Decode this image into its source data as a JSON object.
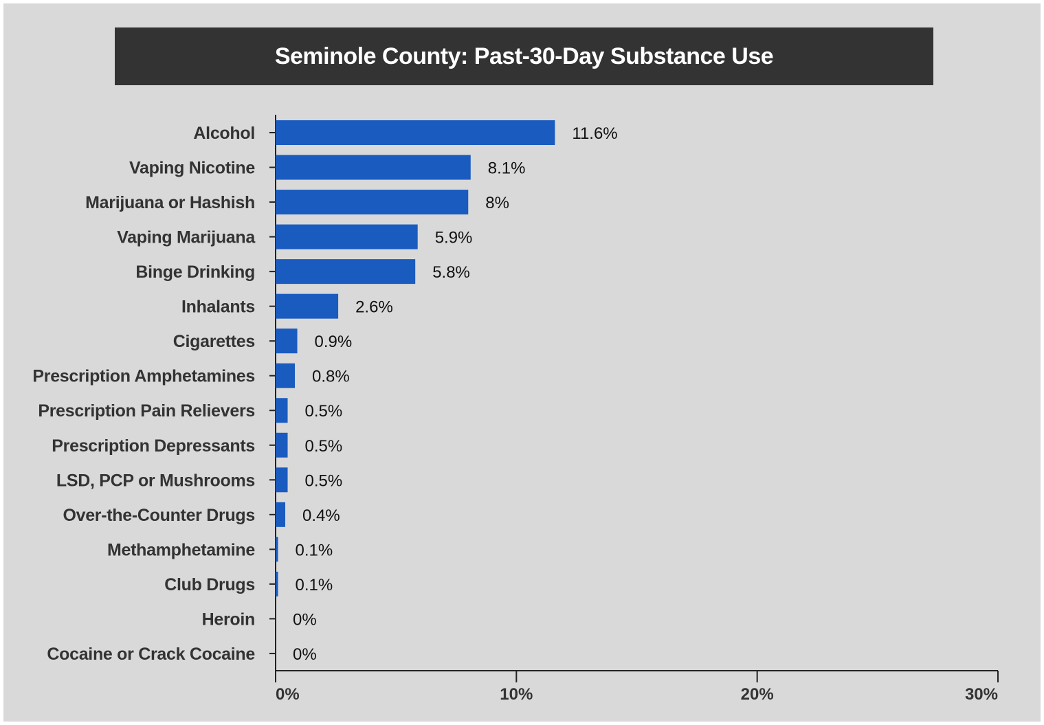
{
  "chart_data": {
    "type": "bar",
    "orientation": "horizontal",
    "title": "Seminole County: Past-30-Day Substance Use",
    "categories": [
      "Alcohol",
      "Vaping Nicotine",
      "Marijuana or Hashish",
      "Vaping Marijuana",
      "Binge Drinking",
      "Inhalants",
      "Cigarettes",
      "Prescription Amphetamines",
      "Prescription Pain Relievers",
      "Prescription Depressants",
      "LSD, PCP or Mushrooms",
      "Over-the-Counter Drugs",
      "Methamphetamine",
      "Club Drugs",
      "Heroin",
      "Cocaine or Crack Cocaine"
    ],
    "values": [
      11.6,
      8.1,
      8,
      5.9,
      5.8,
      2.6,
      0.9,
      0.8,
      0.5,
      0.5,
      0.5,
      0.4,
      0.1,
      0.1,
      0,
      0
    ],
    "value_labels": [
      "11.6%",
      "8.1%",
      "8%",
      "5.9%",
      "5.8%",
      "2.6%",
      "0.9%",
      "0.8%",
      "0.5%",
      "0.5%",
      "0.5%",
      "0.4%",
      "0.1%",
      "0.1%",
      "0%",
      "0%"
    ],
    "xlim": [
      0,
      30
    ],
    "xticks": [
      0,
      10,
      20,
      30
    ],
    "xtick_labels": [
      "0%",
      "10%",
      "20%",
      "30%"
    ],
    "xlabel": "",
    "ylabel": "",
    "grid": false,
    "colors": {
      "bar": "#1a5bbf",
      "background": "#d9d9d9",
      "title_bar": "#333333",
      "title_text": "#ffffff",
      "axis": "#222222"
    }
  }
}
